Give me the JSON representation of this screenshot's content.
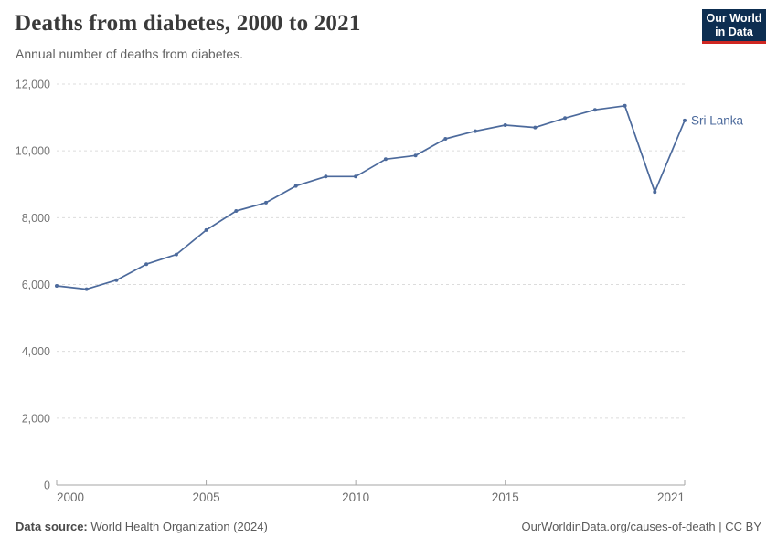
{
  "logo": {
    "line1": "Our World",
    "line2": "in Data"
  },
  "chart_data": {
    "type": "line",
    "title": "Deaths from diabetes, 2000 to 2021",
    "subtitle": "Annual number of deaths from diabetes.",
    "xlabel": "",
    "ylabel": "",
    "xlim": [
      2000,
      2021
    ],
    "ylim": [
      0,
      12000
    ],
    "grid": "horizontal-dashed",
    "legend_position": "end-of-line-label",
    "x": [
      2000,
      2001,
      2002,
      2003,
      2004,
      2005,
      2006,
      2007,
      2008,
      2009,
      2010,
      2011,
      2012,
      2013,
      2014,
      2015,
      2016,
      2017,
      2018,
      2019,
      2020,
      2021
    ],
    "series": [
      {
        "name": "Sri Lanka",
        "color": "#4C6A9C",
        "values": [
          5960,
          5860,
          6130,
          6610,
          6900,
          7630,
          8200,
          8450,
          8950,
          9230,
          9230,
          9750,
          9860,
          10360,
          10590,
          10770,
          10700,
          10980,
          11230,
          11350,
          8770,
          10910
        ]
      }
    ],
    "x_ticks": [
      {
        "v": 2000,
        "label": "2000"
      },
      {
        "v": 2005,
        "label": "2005"
      },
      {
        "v": 2010,
        "label": "2010"
      },
      {
        "v": 2015,
        "label": "2015"
      },
      {
        "v": 2021,
        "label": "2021"
      }
    ],
    "y_ticks": [
      {
        "v": 0,
        "label": "0"
      },
      {
        "v": 2000,
        "label": "2,000"
      },
      {
        "v": 4000,
        "label": "4,000"
      },
      {
        "v": 6000,
        "label": "6,000"
      },
      {
        "v": 8000,
        "label": "8,000"
      },
      {
        "v": 10000,
        "label": "10,000"
      },
      {
        "v": 12000,
        "label": "12,000"
      }
    ]
  },
  "footer": {
    "source_label": "Data source:",
    "source": "World Health Organization (2024)",
    "credit": "OurWorldinData.org/causes-of-death | CC BY"
  }
}
